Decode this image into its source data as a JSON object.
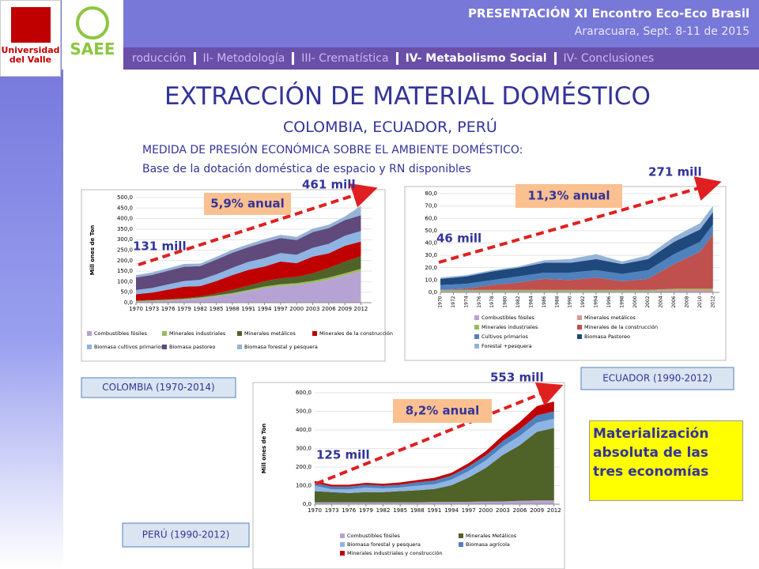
{
  "header": {
    "title": "PRESENTACIÓN XI Encontro Eco-Eco Brasil",
    "subtitle": "Araracuara, Sept. 8-11 de 2015"
  },
  "nav": [
    "roducción",
    "II- Metodología",
    "III- Crematística",
    "IV- Metabolismo Social",
    "IV- Conclusiones"
  ],
  "logos": [
    "Universidad del Valle",
    "SAEE"
  ],
  "slide": {
    "title": "EXTRACCIÓN DE MATERIAL DOMÉSTICO",
    "subtitle": "COLOMBIA, ECUADOR, PERÚ",
    "lines": [
      "MEDIDA DE PRESIÓN ECONÓMICA SOBRE EL AMBIENTE DOMÉSTICO:",
      "Base de la dotación doméstica de espacio y RN disponibles"
    ],
    "note": "Materialización absoluta de las tres economías"
  },
  "chart_data": [
    {
      "type": "stacked_area",
      "caption": "COLOMBIA (1970-2014)",
      "ylabel": "Mill ones de Ton",
      "start_label": "131 mill",
      "end_label": "461 mill",
      "growth_label": "5,9% anual",
      "x": [
        1970,
        1973,
        1976,
        1979,
        1982,
        1985,
        1988,
        1991,
        1994,
        1997,
        2000,
        2003,
        2006,
        2009,
        2012
      ],
      "xlim": [
        1970,
        2014
      ],
      "xticks": [
        1970,
        1973,
        1976,
        1979,
        1982,
        1985,
        1988,
        1991,
        1994,
        1997,
        2000,
        2003,
        2006,
        2009,
        2012
      ],
      "ylim": [
        0,
        500
      ],
      "yticks": [
        {
          "value": 0,
          "label": "0,0"
        },
        {
          "value": 50,
          "label": "50,0"
        },
        {
          "value": 100,
          "label": "100,0"
        },
        {
          "value": 150,
          "label": "150,0"
        },
        {
          "value": 200,
          "label": "200,0"
        },
        {
          "value": 250,
          "label": "250,0"
        },
        {
          "value": 300,
          "label": "300,0"
        },
        {
          "value": 350,
          "label": "350,0"
        },
        {
          "value": 400,
          "label": "400,0"
        },
        {
          "value": 450,
          "label": "450,0"
        },
        {
          "value": 500,
          "label": "500,0"
        }
      ],
      "series": [
        {
          "name": "Combustibles fósiles",
          "color": "#b7a3d3",
          "values": [
            5,
            8,
            10,
            14,
            20,
            30,
            40,
            55,
            70,
            80,
            85,
            95,
            110,
            130,
            150
          ]
        },
        {
          "name": "Minerales industriales",
          "color": "#9bbb59",
          "values": [
            3,
            3,
            4,
            4,
            5,
            5,
            6,
            6,
            7,
            8,
            8,
            9,
            10,
            10,
            11
          ]
        },
        {
          "name": "Minerales metálicos",
          "color": "#4f6228",
          "values": [
            2,
            2,
            3,
            3,
            4,
            8,
            15,
            20,
            25,
            28,
            30,
            35,
            45,
            55,
            60
          ]
        },
        {
          "name": "Minerales de la construcción",
          "color": "#c00000",
          "values": [
            30,
            35,
            45,
            55,
            50,
            60,
            70,
            75,
            70,
            80,
            65,
            80,
            70,
            75,
            70
          ]
        },
        {
          "name": "Biomasa cultivos primarios",
          "color": "#8eb4e3",
          "values": [
            20,
            22,
            25,
            27,
            30,
            32,
            35,
            38,
            40,
            40,
            40,
            42,
            45,
            48,
            50
          ]
        },
        {
          "name": "Biomasa pastoreo",
          "color": "#604a7b",
          "values": [
            60,
            62,
            65,
            68,
            65,
            70,
            72,
            70,
            75,
            72,
            70,
            75,
            75,
            75,
            75
          ]
        },
        {
          "name": "Biomasa forestal y pesquera",
          "color": "#95b3d7",
          "values": [
            11,
            12,
            12,
            13,
            12,
            13,
            14,
            14,
            15,
            15,
            15,
            16,
            16,
            17,
            45
          ]
        }
      ]
    },
    {
      "type": "stacked_area",
      "caption": "ECUADOR (1990-2012)",
      "start_label": "46 mill",
      "end_label": "271 mill",
      "growth_label": "11,3% anual",
      "x": [
        1970,
        1974,
        1978,
        1982,
        1986,
        1990,
        1994,
        1998,
        2002,
        2006,
        2010,
        2012
      ],
      "xlim": [
        1970,
        2013
      ],
      "xticks": [
        1970,
        1972,
        1974,
        1976,
        1978,
        1980,
        1982,
        1984,
        1986,
        1988,
        1990,
        1992,
        1994,
        1996,
        1998,
        2000,
        2002,
        2004,
        2006,
        2008,
        2010,
        2012
      ],
      "ylim": [
        0,
        80
      ],
      "yticks": [
        {
          "value": 0,
          "label": "0,0"
        },
        {
          "value": 10,
          "label": "10,0"
        },
        {
          "value": 20,
          "label": "20,0"
        },
        {
          "value": 30,
          "label": "30,0"
        },
        {
          "value": 40,
          "label": "40,0"
        },
        {
          "value": 50,
          "label": "50,0"
        },
        {
          "value": 60,
          "label": "60,0"
        },
        {
          "value": 70,
          "label": "70,0"
        },
        {
          "value": 80,
          "label": "80,0"
        }
      ],
      "series": [
        {
          "name": "Combustibles fósiles",
          "color": "#b7a3d3",
          "values": [
            1,
            1,
            1,
            1,
            1,
            1,
            1,
            1,
            1,
            1,
            1,
            1
          ]
        },
        {
          "name": "Minerales metálicos",
          "color": "#d99694",
          "values": [
            0,
            0,
            0,
            0,
            0,
            0,
            0,
            0,
            0,
            1,
            1,
            1
          ]
        },
        {
          "name": "Minerales industriales",
          "color": "#9bbb59",
          "values": [
            1,
            1,
            1,
            1,
            1,
            1,
            1,
            1,
            1,
            1,
            1,
            1
          ]
        },
        {
          "name": "Minerales de la construcción",
          "color": "#c0504d",
          "values": [
            0,
            1,
            4,
            6,
            9,
            8,
            10,
            7,
            9,
            20,
            30,
            44
          ]
        },
        {
          "name": "Cultivos primarios",
          "color": "#4f81bd",
          "values": [
            4,
            4,
            4,
            5,
            5,
            6,
            6,
            6,
            7,
            8,
            8,
            8
          ]
        },
        {
          "name": "Biomasa Pastoreo",
          "color": "#1f497d",
          "values": [
            5,
            6,
            7,
            7,
            8,
            8,
            9,
            8,
            9,
            10,
            10,
            10
          ]
        },
        {
          "name": "Forestal +pesquera",
          "color": "#95b3d7",
          "values": [
            1,
            1,
            1,
            1,
            2,
            3,
            4,
            2,
            3,
            4,
            5,
            5
          ]
        }
      ]
    },
    {
      "type": "stacked_area",
      "caption": "PERÚ (1990-2012)",
      "ylabel": "Mill ones de Ton",
      "start_label": "125 mill",
      "end_label": "553 mill",
      "growth_label": "8,2% anual",
      "x": [
        1970,
        1973,
        1976,
        1979,
        1982,
        1985,
        1988,
        1991,
        1994,
        1997,
        2000,
        2003,
        2006,
        2009,
        2012
      ],
      "xlim": [
        1970,
        2013
      ],
      "xticks": [
        1970,
        1973,
        1976,
        1979,
        1982,
        1985,
        1988,
        1991,
        1994,
        1997,
        2000,
        2003,
        2006,
        2009,
        2012
      ],
      "ylim": [
        0,
        600
      ],
      "yticks": [
        {
          "value": 0,
          "label": "0,0"
        },
        {
          "value": 100,
          "label": "100,0"
        },
        {
          "value": 200,
          "label": "200,0"
        },
        {
          "value": 300,
          "label": "300,0"
        },
        {
          "value": 400,
          "label": "400,0"
        },
        {
          "value": 500,
          "label": "500,0"
        },
        {
          "value": 600,
          "label": "600,0"
        }
      ],
      "series": [
        {
          "name": "Combustibles fósiles",
          "color": "#b7a3d3",
          "values": [
            10,
            10,
            10,
            10,
            10,
            10,
            10,
            12,
            12,
            13,
            15,
            15,
            18,
            20,
            20
          ]
        },
        {
          "name": "Minerales Metálicos",
          "color": "#4f6228",
          "values": [
            60,
            55,
            50,
            55,
            55,
            60,
            65,
            70,
            90,
            130,
            180,
            250,
            300,
            370,
            390
          ]
        },
        {
          "name": "Biomasa forestal y pesquera",
          "color": "#8eb4e3",
          "values": [
            30,
            15,
            20,
            25,
            20,
            20,
            25,
            25,
            30,
            35,
            40,
            45,
            50,
            50,
            50
          ]
        },
        {
          "name": "Biomasa agrícola",
          "color": "#4f81bd",
          "values": [
            15,
            15,
            15,
            15,
            15,
            15,
            18,
            20,
            22,
            25,
            28,
            30,
            35,
            38,
            40
          ]
        },
        {
          "name": "Minerales industriales y construcción",
          "color": "#c00000",
          "values": [
            10,
            10,
            10,
            10,
            10,
            12,
            12,
            15,
            15,
            18,
            22,
            30,
            40,
            50,
            53
          ]
        }
      ]
    }
  ]
}
